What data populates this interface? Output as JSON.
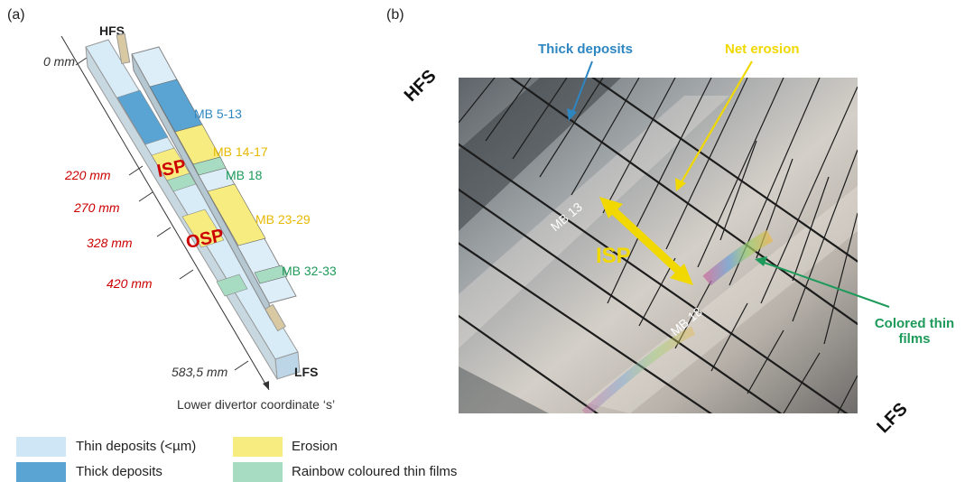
{
  "panel_a": {
    "label": "(a)",
    "hfs": "HFS",
    "lfs": "LFS",
    "coords": [
      {
        "text": "0 mm",
        "color": "#333333"
      },
      {
        "text": "220 mm",
        "color": "#cc0000"
      },
      {
        "text": "270 mm",
        "color": "#cc0000"
      },
      {
        "text": "328 mm",
        "color": "#cc0000"
      },
      {
        "text": "420 mm",
        "color": "#cc0000"
      },
      {
        "text": "583,5 mm",
        "color": "#333333"
      }
    ],
    "mb_labels": [
      {
        "text": "MB 5-13",
        "color": "#2e86c1"
      },
      {
        "text": "MB 14-17",
        "color": "#e6b800"
      },
      {
        "text": "MB 18",
        "color": "#1e9a5a"
      },
      {
        "text": "MB 23-29",
        "color": "#e6b800"
      },
      {
        "text": "MB 32-33",
        "color": "#1e9a5a"
      }
    ],
    "isp": "ISP",
    "osp": "OSP",
    "axis_label": "Lower divertor coordinate ‘s’"
  },
  "panel_b": {
    "label": "(b)",
    "hfs": "HFS",
    "lfs": "LFS",
    "thick_deposits": "Thick deposits",
    "net_erosion": "Net erosion",
    "isp": "ISP",
    "mb13": "MB 13",
    "mb18": "MB 18",
    "colored_line1": "Colored thin",
    "colored_line2": "films"
  },
  "legend": [
    {
      "text": "Thin deposits (<µm)",
      "color": "#cfe6f7"
    },
    {
      "text": "Erosion",
      "color": "#f7ec80"
    },
    {
      "text": "Thick deposits",
      "color": "#5aa4d4"
    },
    {
      "text": "Rainbow coloured thin films",
      "color": "#a8dcc2"
    }
  ],
  "colors": {
    "red": "#cc0000",
    "blue": "#2e86c1",
    "yellow": "#f0d800",
    "green": "#1e9a5a"
  }
}
